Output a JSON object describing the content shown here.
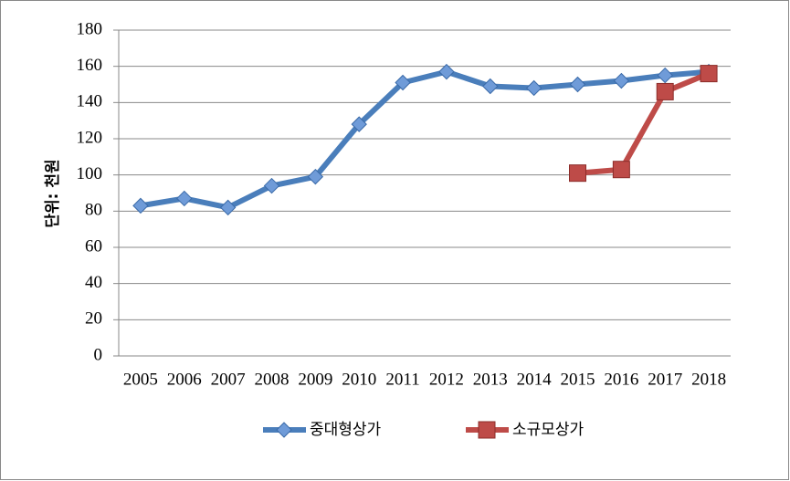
{
  "chart_data": {
    "type": "line",
    "y_label": "단위: 천원",
    "categories": [
      "2005",
      "2006",
      "2007",
      "2008",
      "2009",
      "2010",
      "2011",
      "2012",
      "2013",
      "2014",
      "2015",
      "2016",
      "2017",
      "2018"
    ],
    "series": [
      {
        "name": "중대형상가",
        "color": "#4a7ebb",
        "marker": "diamond",
        "values": [
          83,
          87,
          82,
          94,
          99,
          128,
          151,
          157,
          149,
          148,
          150,
          152,
          155,
          157
        ]
      },
      {
        "name": "소규모상가",
        "color": "#be4b48",
        "marker": "square",
        "values": [
          null,
          null,
          null,
          null,
          null,
          null,
          null,
          null,
          null,
          null,
          101,
          103,
          146,
          156
        ]
      }
    ],
    "ylim": [
      0,
      180
    ],
    "yticks": [
      0,
      20,
      40,
      60,
      80,
      100,
      120,
      140,
      160,
      180
    ],
    "grid": true,
    "legend": "bottom"
  }
}
